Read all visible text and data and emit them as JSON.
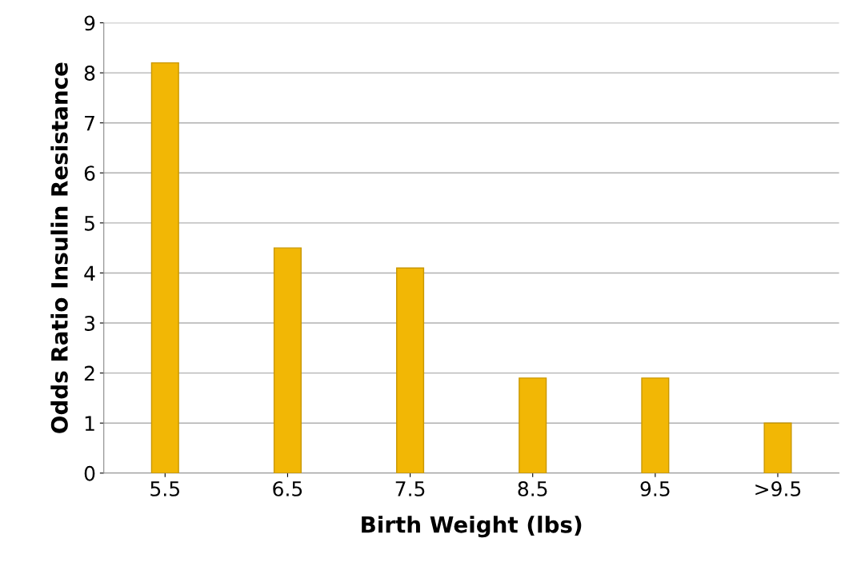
{
  "chart_data": {
    "type": "bar",
    "xlabel": "Birth Weight (lbs)",
    "ylabel": "Odds Ratio Insulin Resistance",
    "categories": [
      "5.5",
      "6.5",
      "7.5",
      "8.5",
      "9.5",
      ">9.5"
    ],
    "series": [
      {
        "color": "#f2b705",
        "values": [
          8.2,
          4.5,
          4.1,
          1.9,
          1.9,
          1.0
        ]
      }
    ],
    "ylim": [
      0,
      9
    ],
    "yticks": [
      0,
      1,
      2,
      3,
      4,
      5,
      6,
      7,
      8,
      9
    ],
    "grid": "y"
  }
}
